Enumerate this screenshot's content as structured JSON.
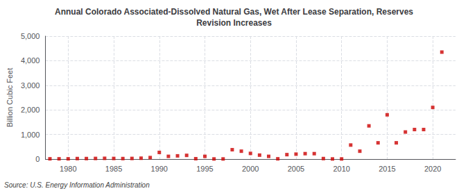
{
  "chart_data": {
    "type": "scatter",
    "title": "Annual Colorado Associated-Dissolved Natural Gas, Wet After Lease Separation, Reserves\nRevision Increases",
    "ylabel": "Billion Cubic Feet",
    "annotations": [
      "Source: U.S. Energy Information Administration"
    ],
    "x": [
      1978,
      1979,
      1980,
      1981,
      1982,
      1983,
      1984,
      1985,
      1986,
      1987,
      1988,
      1989,
      1990,
      1991,
      1992,
      1993,
      1994,
      1995,
      1996,
      1997,
      1998,
      1999,
      2000,
      2001,
      2002,
      2003,
      2004,
      2005,
      2006,
      2007,
      2008,
      2009,
      2010,
      2011,
      2012,
      2013,
      2014,
      2015,
      2016,
      2017,
      2018,
      2019,
      2020,
      2021
    ],
    "values": [
      10,
      10,
      10,
      20,
      20,
      25,
      30,
      25,
      20,
      25,
      35,
      60,
      270,
      110,
      130,
      150,
      15,
      110,
      5,
      5,
      380,
      320,
      230,
      160,
      110,
      10,
      180,
      200,
      220,
      220,
      20,
      5,
      5,
      570,
      320,
      1350,
      660,
      1800,
      660,
      1100,
      1200,
      1200,
      2100,
      4350
    ],
    "color": "#cc0000",
    "marker": "square",
    "xlim": [
      1977.5,
      2022.5
    ],
    "xticks": [
      1980,
      1985,
      1990,
      1995,
      2000,
      2005,
      2010,
      2015,
      2020
    ],
    "ylim": [
      0,
      5000
    ],
    "yticks": [
      0,
      {
        "value": 1000,
        "label": "1,000"
      },
      {
        "value": 2000,
        "label": "2,000"
      },
      {
        "value": 3000,
        "label": "3,000"
      },
      {
        "value": 4000,
        "label": "4,000"
      },
      {
        "value": 5000,
        "label": "5,000"
      }
    ],
    "grid": true
  }
}
